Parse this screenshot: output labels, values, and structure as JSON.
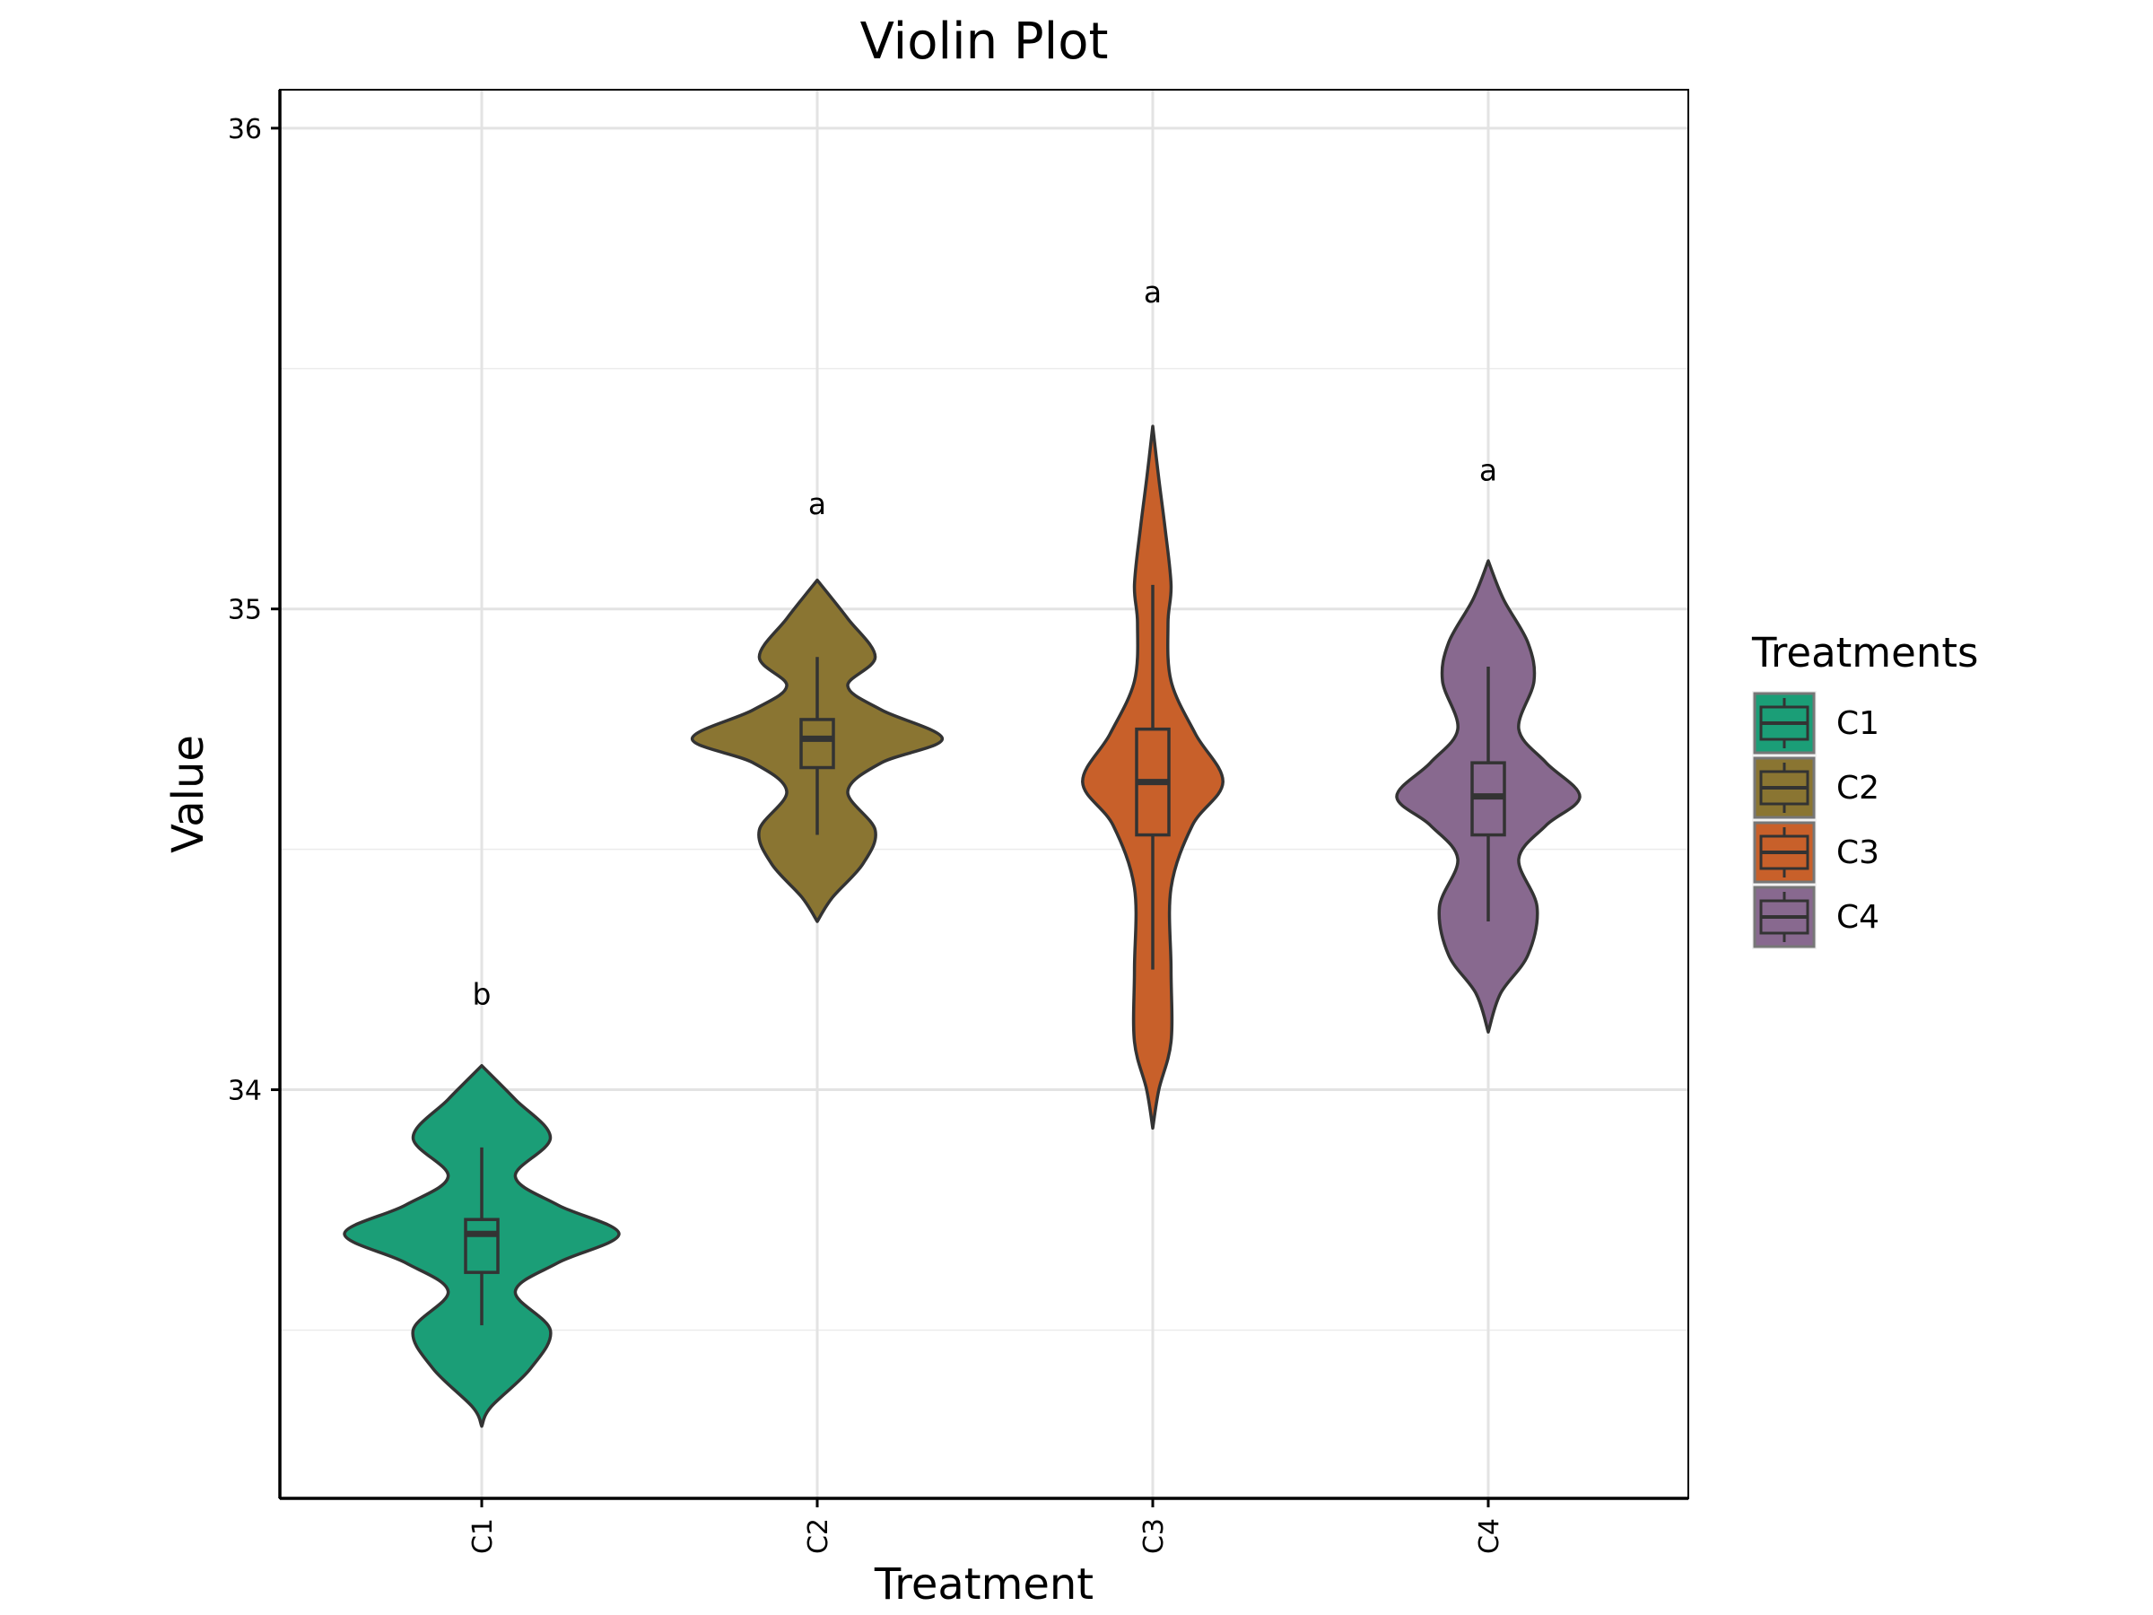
{
  "chart_data": {
    "type": "violin",
    "title": "Violin Plot",
    "xlabel": "Treatment",
    "ylabel": "Value",
    "ylim": [
      33.15,
      36.08
    ],
    "yticks": [
      "34",
      "35",
      "36"
    ],
    "grid": true,
    "legend": {
      "title": "Treatments",
      "position": "right",
      "entries": [
        "C1",
        "C2",
        "C3",
        "C4"
      ]
    },
    "categories": [
      "C1",
      "C2",
      "C3",
      "C4"
    ],
    "groups": [
      {
        "name": "C1",
        "color": "#1B9E77",
        "letter": "b",
        "letter_y": 34.2,
        "box": {
          "whisker_low": 33.51,
          "q1": 33.62,
          "median": 33.7,
          "q3": 33.73,
          "whisker_high": 33.88
        },
        "density": [
          [
            33.3,
            0.0
          ],
          [
            33.34,
            0.06
          ],
          [
            33.42,
            0.32
          ],
          [
            33.5,
            0.45
          ],
          [
            33.58,
            0.22
          ],
          [
            33.64,
            0.5
          ],
          [
            33.7,
            0.9
          ],
          [
            33.76,
            0.5
          ],
          [
            33.82,
            0.22
          ],
          [
            33.9,
            0.45
          ],
          [
            33.98,
            0.22
          ],
          [
            34.05,
            0.0
          ]
        ]
      },
      {
        "name": "C2",
        "color": "#8A7532",
        "letter": "a",
        "letter_y": 35.22,
        "box": {
          "whisker_low": 34.53,
          "q1": 34.67,
          "median": 34.73,
          "q3": 34.77,
          "whisker_high": 34.9
        },
        "density": [
          [
            34.35,
            0.0
          ],
          [
            34.4,
            0.1
          ],
          [
            34.47,
            0.3
          ],
          [
            34.54,
            0.38
          ],
          [
            34.62,
            0.2
          ],
          [
            34.68,
            0.42
          ],
          [
            34.73,
            0.82
          ],
          [
            34.79,
            0.42
          ],
          [
            34.84,
            0.2
          ],
          [
            34.9,
            0.38
          ],
          [
            34.98,
            0.2
          ],
          [
            35.06,
            0.0
          ]
        ]
      },
      {
        "name": "C3",
        "color": "#C8602A",
        "letter": "a",
        "letter_y": 35.66,
        "box": {
          "whisker_low": 34.25,
          "q1": 34.53,
          "median": 34.64,
          "q3": 34.75,
          "whisker_high": 35.05
        },
        "density": [
          [
            33.92,
            0.0
          ],
          [
            34.0,
            0.04
          ],
          [
            34.1,
            0.12
          ],
          [
            34.25,
            0.12
          ],
          [
            34.42,
            0.12
          ],
          [
            34.55,
            0.26
          ],
          [
            34.64,
            0.46
          ],
          [
            34.74,
            0.28
          ],
          [
            34.85,
            0.12
          ],
          [
            34.97,
            0.1
          ],
          [
            35.05,
            0.12
          ],
          [
            35.17,
            0.08
          ],
          [
            35.27,
            0.04
          ],
          [
            35.38,
            0.0
          ]
        ]
      },
      {
        "name": "C4",
        "color": "#88698F",
        "letter": "a",
        "letter_y": 35.29,
        "box": {
          "whisker_low": 34.35,
          "q1": 34.53,
          "median": 34.61,
          "q3": 34.68,
          "whisker_high": 34.88
        },
        "density": [
          [
            34.12,
            0.0
          ],
          [
            34.2,
            0.08
          ],
          [
            34.28,
            0.26
          ],
          [
            34.38,
            0.32
          ],
          [
            34.48,
            0.2
          ],
          [
            34.55,
            0.38
          ],
          [
            34.61,
            0.6
          ],
          [
            34.68,
            0.38
          ],
          [
            34.75,
            0.2
          ],
          [
            34.85,
            0.3
          ],
          [
            34.93,
            0.26
          ],
          [
            35.02,
            0.1
          ],
          [
            35.1,
            0.0
          ]
        ]
      }
    ]
  }
}
